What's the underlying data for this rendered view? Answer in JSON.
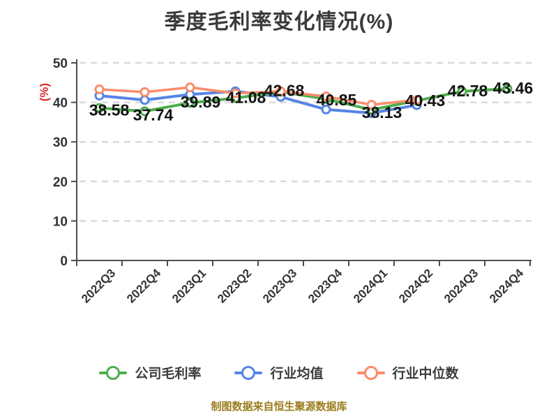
{
  "title": "季度毛利率变化情况(%)",
  "y_unit_label": "(%)",
  "footer": "制图数据来自恒生聚源数据库",
  "legend": {
    "items": [
      {
        "label": "公司毛利率",
        "color": "#4cae4c"
      },
      {
        "label": "行业均值",
        "color": "#5585e5"
      },
      {
        "label": "行业中位数",
        "color": "#fa8c69"
      }
    ]
  },
  "chart_data": {
    "type": "line",
    "title": "季度毛利率变化情况(%)",
    "categories": [
      "2022Q3",
      "2022Q4",
      "2023Q1",
      "2023Q2",
      "2023Q3",
      "2023Q4",
      "2024Q1",
      "2024Q2",
      "2024Q3",
      "2024Q4"
    ],
    "series": [
      {
        "name": "公司毛利率",
        "color": "#4cae4c",
        "values": [
          38.58,
          37.74,
          39.89,
          41.08,
          42.68,
          40.85,
          38.13,
          40.43,
          42.78,
          43.46
        ],
        "data_labels": true
      },
      {
        "name": "行业均值",
        "color": "#5585e5",
        "values": [
          41.7,
          40.6,
          42.0,
          42.8,
          41.4,
          38.2,
          37.3,
          39.3,
          null,
          null
        ],
        "data_labels": false
      },
      {
        "name": "行业中位数",
        "color": "#fa8c69",
        "values": [
          43.3,
          42.6,
          43.8,
          42.3,
          42.8,
          41.5,
          39.4,
          40.6,
          null,
          null
        ],
        "data_labels": false
      }
    ],
    "xlabel": "",
    "ylabel": "(%)",
    "ylim": [
      0,
      50
    ],
    "yticks": [
      0,
      10,
      20,
      30,
      40,
      50
    ],
    "grid": "horizontal-dashed",
    "legend_position": "bottom",
    "marker": "circle-white-fill"
  },
  "colors": {
    "title": "#3a3a3a",
    "axis": "#4d4d4d",
    "tick_label": "#333333",
    "data_label": "#141414",
    "grid": "#d9d9d9",
    "unit": "#d92b2b",
    "footer": "#9a7d1e",
    "background": "#ffffff"
  }
}
